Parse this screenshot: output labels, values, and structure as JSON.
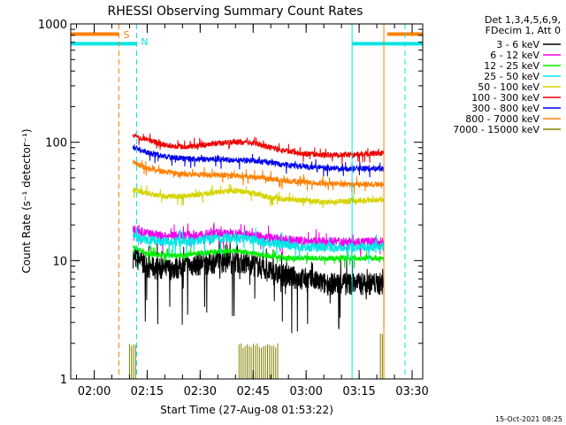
{
  "chart_data": {
    "type": "line",
    "title": "RHESSI Observing Summary Count Rates",
    "xlabel": "Start Time (27-Aug-08 01:53:22)",
    "ylabel": "Count Rate (s⁻¹ detector⁻¹)",
    "xlim": [
      "01:53:22",
      "03:33:00"
    ],
    "ylim": [
      1,
      1000
    ],
    "yscale": "log",
    "x_ticks": [
      "02:00",
      "02:15",
      "02:30",
      "02:45",
      "03:00",
      "03:15",
      "03:30"
    ],
    "y_ticks": [
      "1",
      "10",
      "100",
      "1000"
    ],
    "legend_header": [
      "Det 1,3,4,5,6,9,",
      "FDecim 1, Att 0"
    ],
    "legend_position": "right",
    "series": [
      {
        "name": "3 - 6 keV",
        "color": "#000000",
        "points": [
          [
            "02:11",
            "11"
          ],
          [
            "02:15",
            "9"
          ],
          [
            "02:20",
            "8.5"
          ],
          [
            "02:25",
            "9"
          ],
          [
            "02:30",
            "9.5"
          ],
          [
            "02:35",
            "10"
          ],
          [
            "02:40",
            "10"
          ],
          [
            "02:45",
            "9.5"
          ],
          [
            "02:50",
            "8"
          ],
          [
            "02:55",
            "7.5"
          ],
          [
            "03:00",
            "7"
          ],
          [
            "03:05",
            "6.5"
          ],
          [
            "03:10",
            "6.5"
          ],
          [
            "03:15",
            "6.5"
          ],
          [
            "03:22",
            "6.5"
          ]
        ]
      },
      {
        "name": "6 - 12 keV",
        "color": "#ee00ee",
        "points": [
          [
            "02:11",
            "18.5"
          ],
          [
            "02:15",
            "17"
          ],
          [
            "02:20",
            "16"
          ],
          [
            "02:25",
            "16.5"
          ],
          [
            "02:30",
            "16.5"
          ],
          [
            "02:35",
            "17"
          ],
          [
            "02:40",
            "17"
          ],
          [
            "02:45",
            "16.5"
          ],
          [
            "02:50",
            "15.5"
          ],
          [
            "02:55",
            "15"
          ],
          [
            "03:00",
            "14.5"
          ],
          [
            "03:05",
            "14.5"
          ],
          [
            "03:10",
            "14.5"
          ],
          [
            "03:15",
            "14.5"
          ],
          [
            "03:22",
            "14.5"
          ]
        ]
      },
      {
        "name": "12 - 25 keV",
        "color": "#00ee00",
        "points": [
          [
            "02:11",
            "13"
          ],
          [
            "02:15",
            "11.5"
          ],
          [
            "02:20",
            "11"
          ],
          [
            "02:25",
            "11"
          ],
          [
            "02:30",
            "11.5"
          ],
          [
            "02:35",
            "12"
          ],
          [
            "02:40",
            "12"
          ],
          [
            "02:45",
            "11.5"
          ],
          [
            "02:50",
            "11"
          ],
          [
            "02:55",
            "10.5"
          ],
          [
            "03:00",
            "10.5"
          ],
          [
            "03:05",
            "10.5"
          ],
          [
            "03:10",
            "10.5"
          ],
          [
            "03:15",
            "10.5"
          ],
          [
            "03:22",
            "10.5"
          ]
        ]
      },
      {
        "name": "25 - 50 keV",
        "color": "#00e5e5",
        "points": [
          [
            "02:11",
            "16"
          ],
          [
            "02:15",
            "15"
          ],
          [
            "02:20",
            "14.5"
          ],
          [
            "02:25",
            "14.5"
          ],
          [
            "02:30",
            "15"
          ],
          [
            "02:35",
            "15.5"
          ],
          [
            "02:40",
            "15.5"
          ],
          [
            "02:45",
            "15"
          ],
          [
            "02:50",
            "14"
          ],
          [
            "02:55",
            "13.5"
          ],
          [
            "03:00",
            "13"
          ],
          [
            "03:05",
            "13"
          ],
          [
            "03:10",
            "13"
          ],
          [
            "03:15",
            "13"
          ],
          [
            "03:22",
            "13"
          ]
        ]
      },
      {
        "name": "50 - 100 keV",
        "color": "#d4d400",
        "points": [
          [
            "02:11",
            "40"
          ],
          [
            "02:15",
            "37"
          ],
          [
            "02:20",
            "35"
          ],
          [
            "02:25",
            "35"
          ],
          [
            "02:30",
            "36"
          ],
          [
            "02:35",
            "38"
          ],
          [
            "02:40",
            "39"
          ],
          [
            "02:45",
            "37"
          ],
          [
            "02:50",
            "34"
          ],
          [
            "02:55",
            "33"
          ],
          [
            "03:00",
            "32"
          ],
          [
            "03:05",
            "31.5"
          ],
          [
            "03:10",
            "31.5"
          ],
          [
            "03:15",
            "32"
          ],
          [
            "03:22",
            "33"
          ]
        ]
      },
      {
        "name": "100 - 300 keV",
        "color": "#ee0000",
        "points": [
          [
            "02:11",
            "115"
          ],
          [
            "02:15",
            "105"
          ],
          [
            "02:20",
            "95"
          ],
          [
            "02:25",
            "92"
          ],
          [
            "02:30",
            "94"
          ],
          [
            "02:35",
            "98"
          ],
          [
            "02:40",
            "101"
          ],
          [
            "02:45",
            "98"
          ],
          [
            "02:50",
            "90"
          ],
          [
            "02:55",
            "84"
          ],
          [
            "03:00",
            "80"
          ],
          [
            "03:05",
            "78"
          ],
          [
            "03:10",
            "78"
          ],
          [
            "03:15",
            "79"
          ],
          [
            "03:22",
            "81"
          ]
        ]
      },
      {
        "name": "300 - 800 keV",
        "color": "#0000ee",
        "points": [
          [
            "02:11",
            "92"
          ],
          [
            "02:15",
            "82"
          ],
          [
            "02:20",
            "76"
          ],
          [
            "02:25",
            "73"
          ],
          [
            "02:30",
            "72"
          ],
          [
            "02:35",
            "72"
          ],
          [
            "02:40",
            "71"
          ],
          [
            "02:45",
            "70"
          ],
          [
            "02:50",
            "67"
          ],
          [
            "02:55",
            "64"
          ],
          [
            "03:00",
            "62"
          ],
          [
            "03:05",
            "61"
          ],
          [
            "03:10",
            "60"
          ],
          [
            "03:15",
            "60"
          ],
          [
            "03:22",
            "60"
          ]
        ]
      },
      {
        "name": "800 - 7000 keV",
        "color": "#ff8000",
        "points": [
          [
            "02:11",
            "68"
          ],
          [
            "02:15",
            "60"
          ],
          [
            "02:20",
            "56"
          ],
          [
            "02:25",
            "54"
          ],
          [
            "02:30",
            "53"
          ],
          [
            "02:35",
            "53"
          ],
          [
            "02:40",
            "52"
          ],
          [
            "02:45",
            "51"
          ],
          [
            "02:50",
            "49"
          ],
          [
            "02:55",
            "47"
          ],
          [
            "03:00",
            "46"
          ],
          [
            "03:05",
            "45"
          ],
          [
            "03:10",
            "44"
          ],
          [
            "03:15",
            "44"
          ],
          [
            "03:22",
            "44"
          ]
        ]
      },
      {
        "name": "7000 - 15000 keV",
        "color": "#808000",
        "bursts": [
          [
            "02:10",
            "02:12",
            "2"
          ],
          [
            "02:41",
            "02:52",
            "2"
          ],
          [
            "03:21",
            "03:22",
            "2.5"
          ]
        ]
      }
    ],
    "markers": [
      {
        "label": "S",
        "color": "#ff8000",
        "time": "02:07",
        "style": "dashed"
      },
      {
        "label": "N",
        "color": "#00e5e5",
        "time": "02:12",
        "style": "dashed"
      },
      {
        "label": "",
        "color": "#00e5e5",
        "time": "03:13",
        "style": "solid"
      },
      {
        "label": "",
        "color": "#ff8000",
        "time": "03:22",
        "style": "solid"
      },
      {
        "label": "",
        "color": "#00e5e5",
        "time": "03:28",
        "style": "dashed"
      }
    ],
    "flag_bars": [
      {
        "label": "S",
        "color": "#ff8000",
        "level": "820",
        "segments": [
          [
            "01:53:22",
            "02:07"
          ],
          [
            "03:23",
            "03:33"
          ]
        ]
      },
      {
        "label": "N",
        "color": "#00e5e5",
        "level": "680",
        "segments": [
          [
            "01:53:22",
            "02:12"
          ],
          [
            "03:13",
            "03:33"
          ]
        ]
      }
    ]
  },
  "footer": {
    "date": "15-Oct-2021 08:25"
  }
}
